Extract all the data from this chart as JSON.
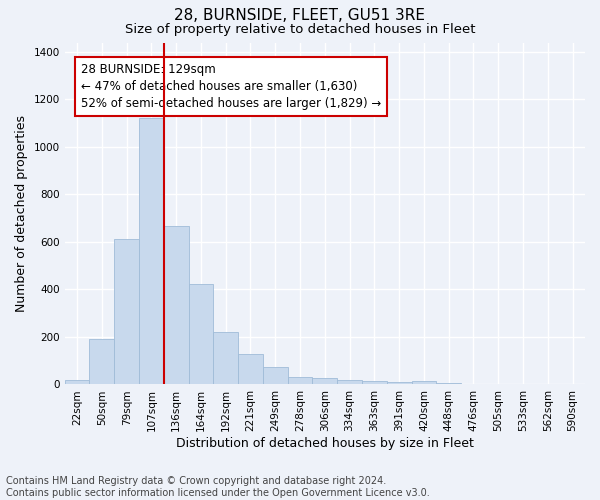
{
  "title": "28, BURNSIDE, FLEET, GU51 3RE",
  "subtitle": "Size of property relative to detached houses in Fleet",
  "xlabel": "Distribution of detached houses by size in Fleet",
  "ylabel": "Number of detached properties",
  "bar_color": "#c8d9ed",
  "bar_edgecolor": "#a0bcd8",
  "categories": [
    "22sqm",
    "50sqm",
    "79sqm",
    "107sqm",
    "136sqm",
    "164sqm",
    "192sqm",
    "221sqm",
    "249sqm",
    "278sqm",
    "306sqm",
    "334sqm",
    "363sqm",
    "391sqm",
    "420sqm",
    "448sqm",
    "476sqm",
    "505sqm",
    "533sqm",
    "562sqm",
    "590sqm"
  ],
  "values": [
    18,
    193,
    612,
    1120,
    667,
    425,
    220,
    128,
    73,
    30,
    28,
    18,
    15,
    12,
    15,
    8,
    0,
    0,
    0,
    0,
    0
  ],
  "vline_x": 3.5,
  "vline_color": "#cc0000",
  "annotation_text": "28 BURNSIDE: 129sqm\n← 47% of detached houses are smaller (1,630)\n52% of semi-detached houses are larger (1,829) →",
  "annotation_box_color": "white",
  "annotation_box_edgecolor": "#cc0000",
  "ylim": [
    0,
    1440
  ],
  "yticks": [
    0,
    200,
    400,
    600,
    800,
    1000,
    1200,
    1400
  ],
  "footnote": "Contains HM Land Registry data © Crown copyright and database right 2024.\nContains public sector information licensed under the Open Government Licence v3.0.",
  "background_color": "#eef2f9",
  "grid_color": "#ffffff",
  "title_fontsize": 11,
  "subtitle_fontsize": 9.5,
  "axis_label_fontsize": 9,
  "tick_fontsize": 7.5,
  "annotation_fontsize": 8.5,
  "footnote_fontsize": 7
}
